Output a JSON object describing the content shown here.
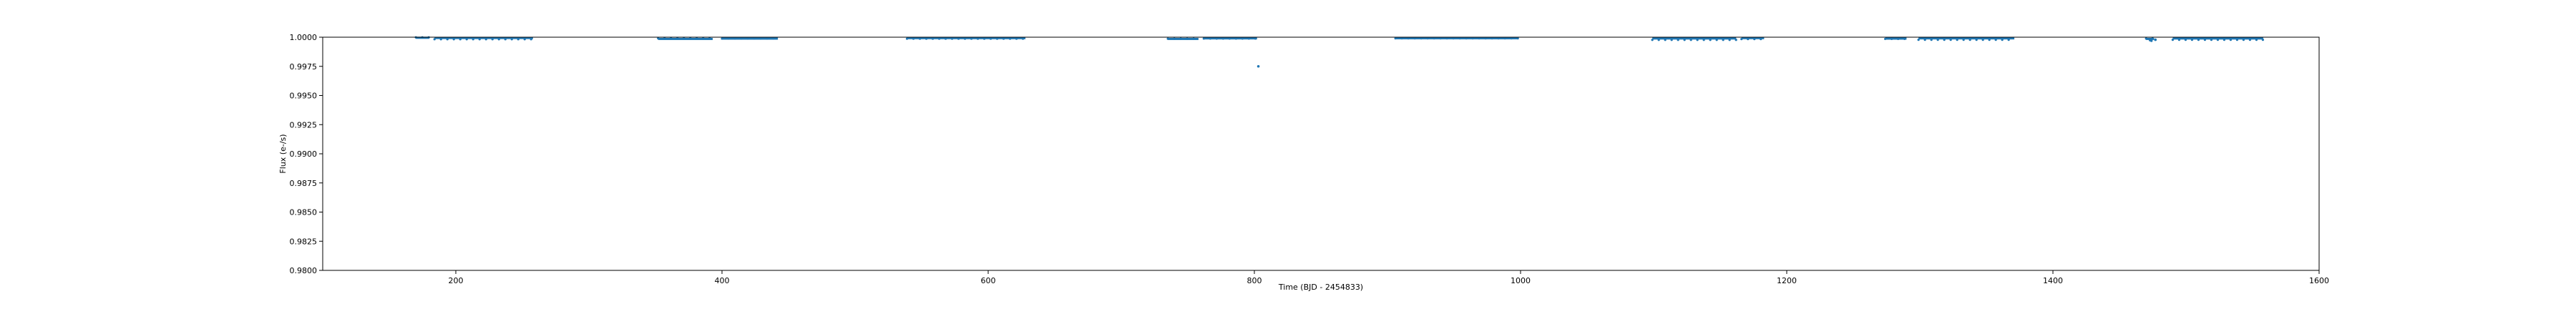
{
  "chart_data": {
    "type": "scatter",
    "title": "",
    "xlabel": "Time (BJD - 2454833)",
    "ylabel": "Flux (e-/s)",
    "xlim": [
      100,
      1600
    ],
    "ylim": [
      0.98,
      1.0
    ],
    "xticks": [
      200,
      400,
      600,
      800,
      1000,
      1200,
      1400,
      1600
    ],
    "xtick_labels": [
      "200",
      "400",
      "600",
      "800",
      "1000",
      "1200",
      "1400",
      "1600"
    ],
    "yticks": [
      0.98,
      0.9825,
      0.985,
      0.9875,
      0.99,
      0.9925,
      0.995,
      0.9975,
      1.0
    ],
    "ytick_labels": [
      "0.9800",
      "0.9825",
      "0.9850",
      "0.9875",
      "0.9900",
      "0.9925",
      "0.9950",
      "0.9975",
      "1.0000"
    ],
    "grid": false,
    "marker_color": "#1f77b4",
    "segments": [
      {
        "x": [
          170,
          180
        ],
        "y": 0.99995
      },
      {
        "x": [
          184,
          258
        ],
        "y": 0.99993
      },
      {
        "x": [
          352,
          393
        ],
        "y": 0.99985
      },
      {
        "x": [
          400,
          442
        ],
        "y": 0.99988
      },
      {
        "x": [
          539,
          628
        ],
        "y": 0.99992
      },
      {
        "x": [
          735,
          758
        ],
        "y": 0.99985
      },
      {
        "x": [
          762,
          802
        ],
        "y": 0.9999
      },
      {
        "x": [
          906,
          998
        ],
        "y": 0.99991
      },
      {
        "x": [
          1099,
          1162
        ],
        "y": 0.99989
      },
      {
        "x": [
          1166,
          1183
        ],
        "y": 0.99992
      },
      {
        "x": [
          1274,
          1290
        ],
        "y": 0.99988
      },
      {
        "x": [
          1299,
          1371
        ],
        "y": 0.9999
      },
      {
        "x": [
          1470,
          1476
        ],
        "y": 0.99985
      },
      {
        "x": [
          1490,
          1558
        ],
        "y": 0.99989
      }
    ],
    "outliers": [
      {
        "x": 1474,
        "y": 0.9997
      },
      {
        "x": 1473,
        "y": 0.99975
      },
      {
        "x": 1477,
        "y": 0.99978
      },
      {
        "x": 803,
        "y": 0.9975
      }
    ]
  }
}
